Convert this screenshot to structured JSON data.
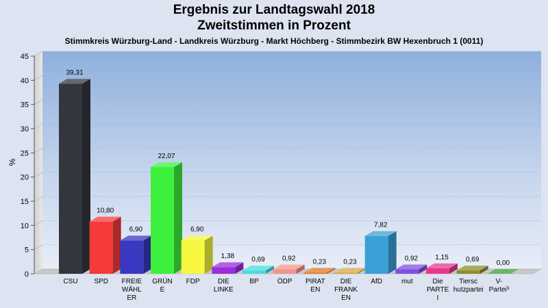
{
  "header": {
    "title_line1": "Ergebnis zur Landtagswahl 2018",
    "title_line2": "Zweitstimmen in Prozent",
    "subtitle": "Stimmkreis Würzburg-Land - Landkreis Würzburg - Markt Höchberg - Stimmbezirk BW Hexenbruch 1 (0011)"
  },
  "chart_data": {
    "type": "bar",
    "title": "Ergebnis zur Landtagswahl 2018 – Zweitstimmen in Prozent",
    "subtitle": "Stimmkreis Würzburg-Land - Landkreis Würzburg - Markt Höchberg - Stimmbezirk BW Hexenbruch 1 (0011)",
    "ylabel": "%",
    "ylim": [
      0,
      45
    ],
    "yticks": [
      0,
      5,
      10,
      15,
      20,
      25,
      30,
      35,
      40,
      45
    ],
    "grid": true,
    "categories": [
      [
        "CSU"
      ],
      [
        "SPD"
      ],
      [
        "FREIE",
        "WÄHL",
        "ER"
      ],
      [
        "GRÜN",
        "E"
      ],
      [
        "FDP"
      ],
      [
        "DIE",
        "LINKE"
      ],
      [
        "BP"
      ],
      [
        "ÖDP"
      ],
      [
        "PIRAT",
        "EN"
      ],
      [
        "DIE",
        "FRANK",
        "EN"
      ],
      [
        "AfD"
      ],
      [
        "mut"
      ],
      [
        "Die",
        "PARTE",
        "I"
      ],
      [
        "Tiersc",
        "hutzpartei"
      ],
      [
        "V-",
        "Partei³"
      ]
    ],
    "values": [
      39.31,
      10.8,
      6.9,
      22.07,
      6.9,
      1.38,
      0.69,
      0.92,
      0.23,
      0.23,
      7.82,
      0.92,
      1.15,
      0.69,
      0.0
    ],
    "value_labels": [
      "39,31",
      "10,80",
      "6,90",
      "22,07",
      "6,90",
      "1,38",
      "0,69",
      "0,92",
      "0,23",
      "0,23",
      "7,82",
      "0,92",
      "1,15",
      "0,69",
      "0,00"
    ],
    "colors": [
      "#33363d",
      "#f43a3a",
      "#3a37c0",
      "#3ef03e",
      "#f7f73f",
      "#9b2ce0",
      "#44dedd",
      "#f5938c",
      "#e07820",
      "#d8a840",
      "#3aa0d6",
      "#8050e0",
      "#e8388e",
      "#8e8e2c",
      "#35a035"
    ]
  }
}
